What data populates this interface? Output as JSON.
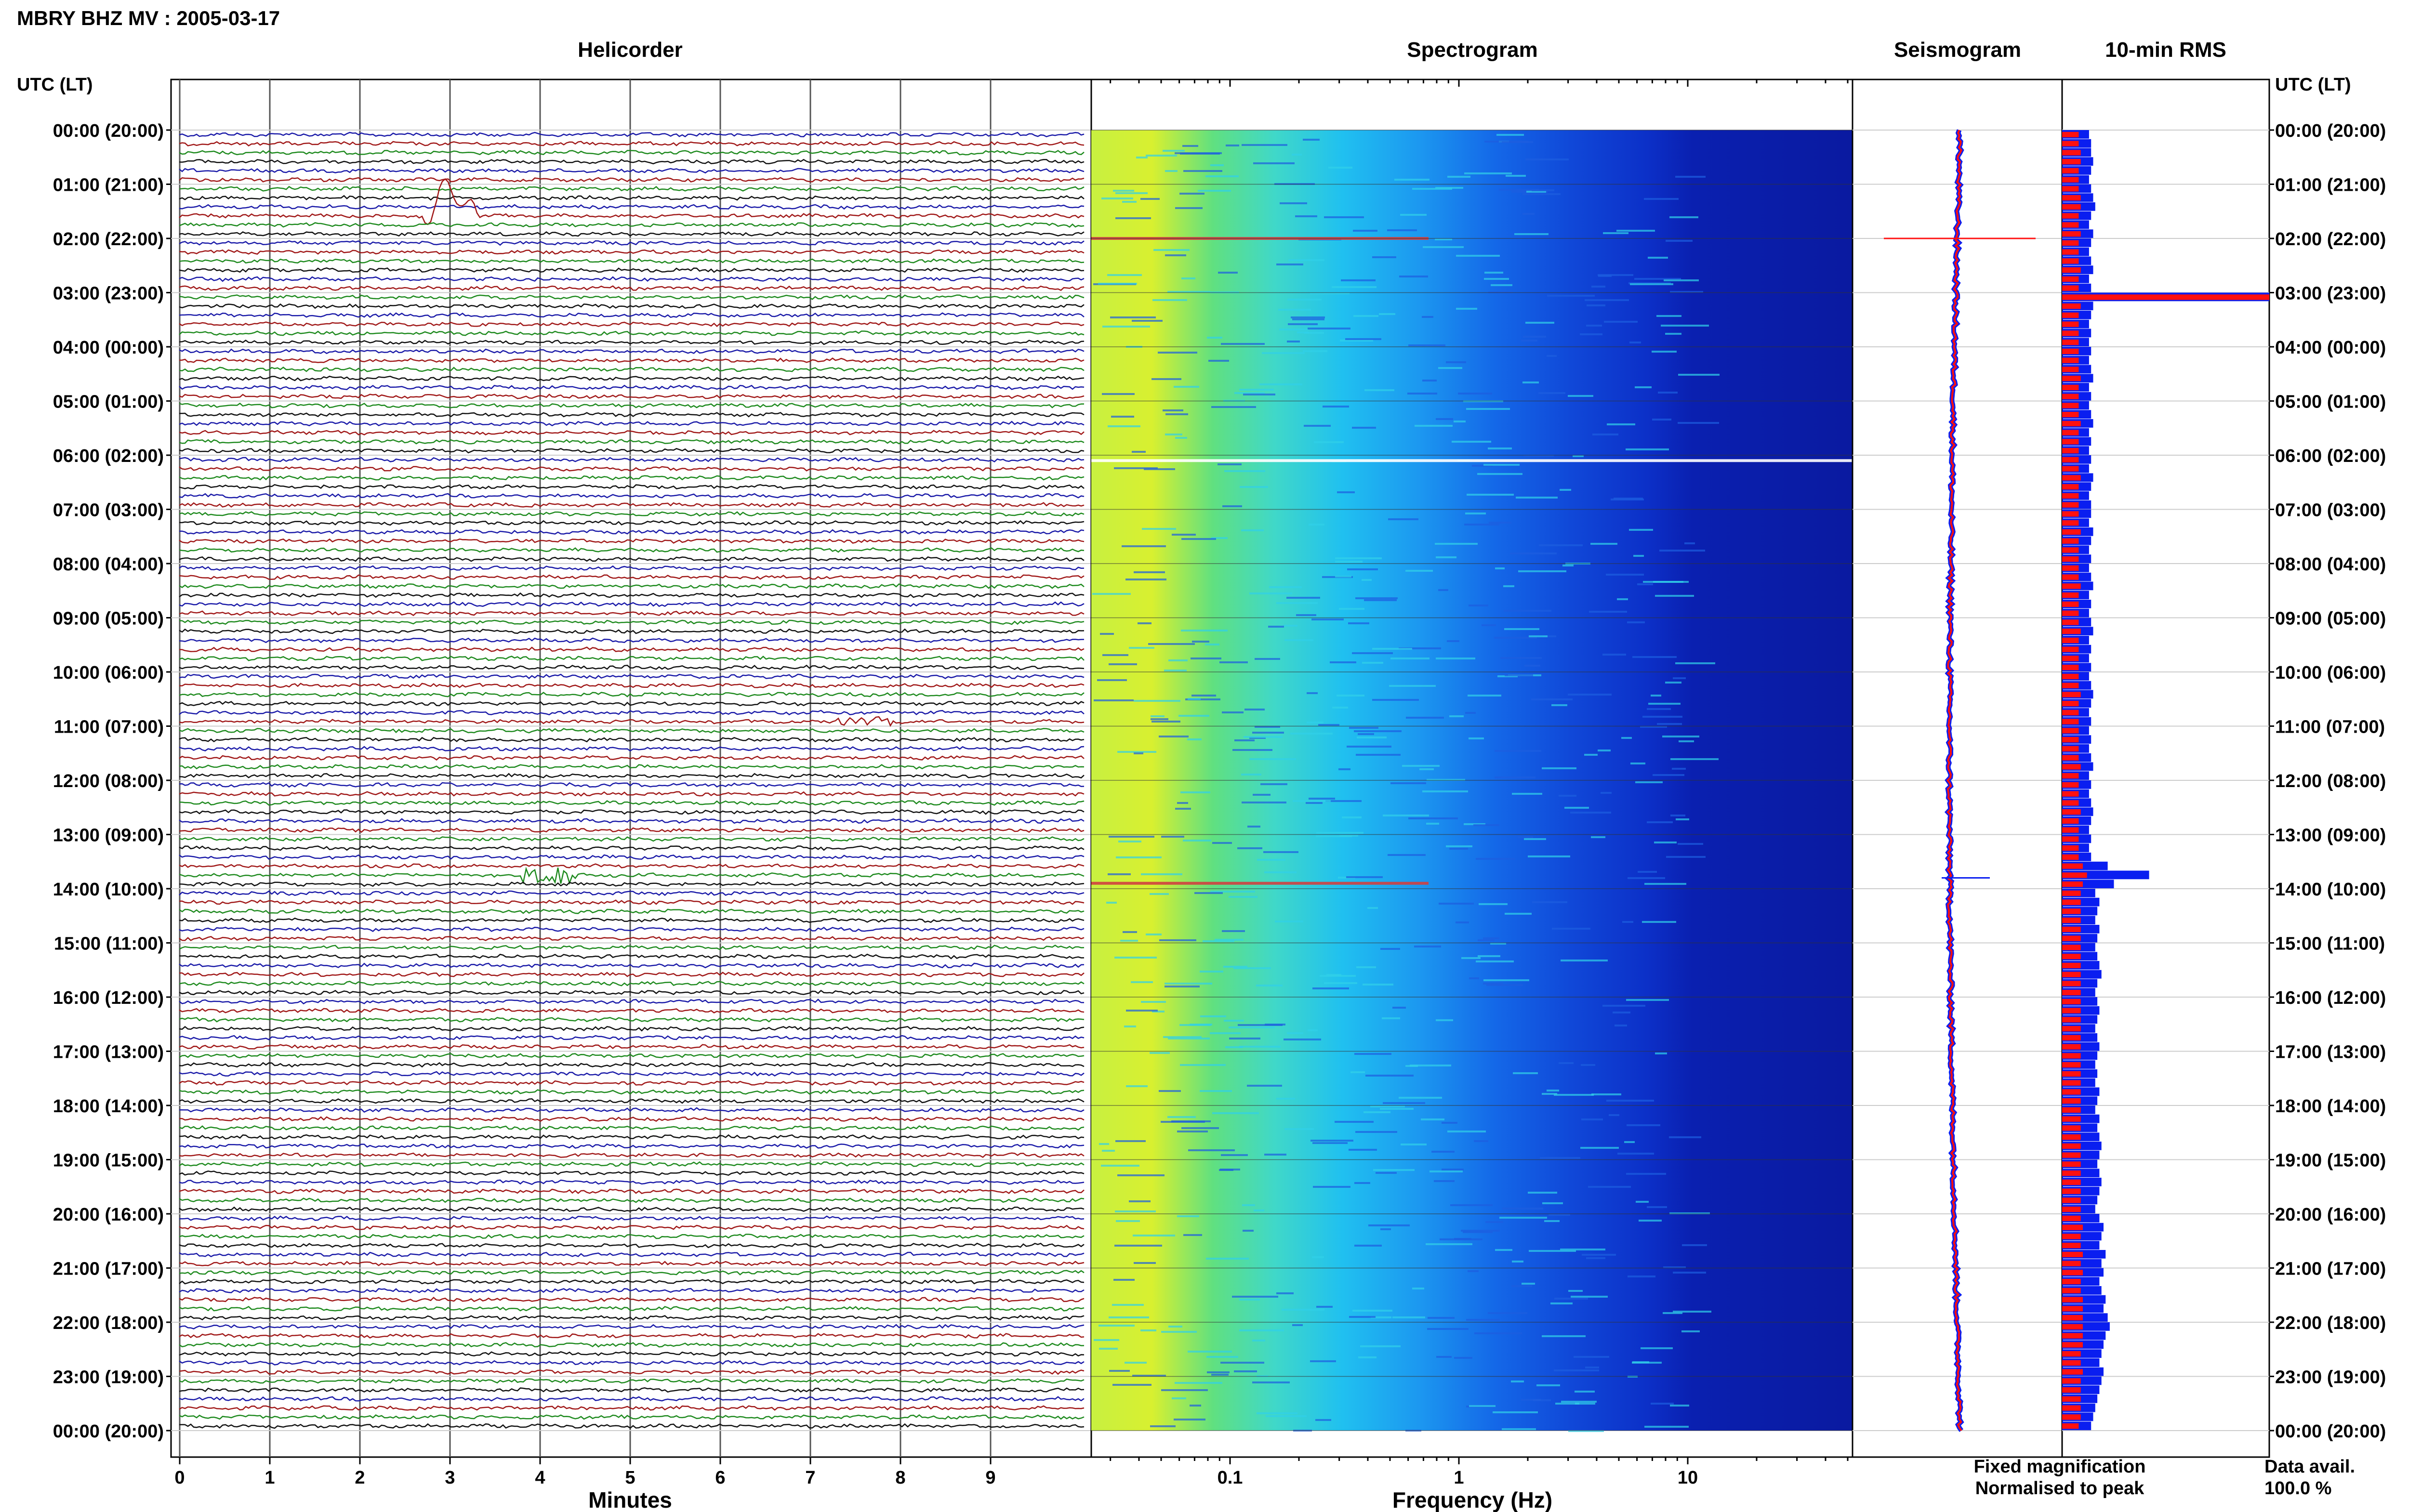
{
  "header": {
    "station_title": "MBRY BHZ MV : 2005-03-17"
  },
  "panels": {
    "helicorder": "Helicorder",
    "spectrogram": "Spectrogram",
    "seismogram": "Seismogram",
    "rms": "10-min RMS"
  },
  "time_axis": {
    "left_label": "UTC (LT)",
    "right_label": "UTC (LT)",
    "ticks": [
      "00:00 (20:00)",
      "01:00 (21:00)",
      "02:00 (22:00)",
      "03:00 (23:00)",
      "04:00 (00:00)",
      "05:00 (01:00)",
      "06:00 (02:00)",
      "07:00 (03:00)",
      "08:00 (04:00)",
      "09:00 (05:00)",
      "10:00 (06:00)",
      "11:00 (07:00)",
      "12:00 (08:00)",
      "13:00 (09:00)",
      "14:00 (10:00)",
      "15:00 (11:00)",
      "16:00 (12:00)",
      "17:00 (13:00)",
      "18:00 (14:00)",
      "19:00 (15:00)",
      "20:00 (16:00)",
      "21:00 (17:00)",
      "22:00 (18:00)",
      "23:00 (19:00)",
      "00:00 (20:00)"
    ]
  },
  "helicorder_axis": {
    "label": "Minutes",
    "ticks": [
      "0",
      "1",
      "2",
      "3",
      "4",
      "5",
      "6",
      "7",
      "8",
      "9"
    ]
  },
  "spectrogram_axis": {
    "label": "Frequency (Hz)",
    "ticks": [
      "0.1",
      "1",
      "10"
    ],
    "scale": "log"
  },
  "legend": {
    "fixed": "Fixed magnification",
    "normalised": "Normalised to peak",
    "fixed_color": "#0a1ef0",
    "normalised_color": "#ff1010"
  },
  "availability": {
    "label": "Data avail.",
    "value": "100.0 %"
  },
  "colors": {
    "trace_cycle": [
      "#1a1aa8",
      "#a01818",
      "#1e8a1e",
      "#111111"
    ],
    "rms_blue": "#0a1ef0",
    "rms_red": "#ff1010"
  },
  "chart_data": [
    {
      "type": "line",
      "title": "Helicorder",
      "xlabel": "Minutes",
      "xlim": [
        0,
        10
      ],
      "rows_per_hour": 6,
      "row_minutes": 10,
      "events": [
        {
          "hour": 1.5,
          "minute": 3.0,
          "kind": "large transient"
        },
        {
          "hour": 13.67,
          "minute": 4.1,
          "kind": "burst"
        },
        {
          "hour": 10.83,
          "minute": 7.6,
          "kind": "spike"
        }
      ]
    },
    {
      "type": "heatmap",
      "title": "Spectrogram",
      "xlabel": "Frequency (Hz)",
      "xlim": [
        0.025,
        50
      ],
      "xscale": "log",
      "colormap": "jet",
      "notable_rows": [
        {
          "hour": 2.0,
          "kind": "broadband line"
        },
        {
          "hour": 6.1,
          "kind": "data gap"
        },
        {
          "hour": 13.9,
          "kind": "broadband line"
        }
      ]
    },
    {
      "type": "bar",
      "title": "10-min RMS",
      "series": [
        {
          "name": "Fixed magnification",
          "values": [
            0.13,
            0.14,
            0.14,
            0.15,
            0.14,
            0.13,
            0.14,
            0.15,
            0.16,
            0.14,
            0.13,
            0.15,
            0.14,
            0.13,
            0.14,
            0.15,
            0.13,
            0.14,
            1.0,
            0.15,
            0.14,
            0.13,
            0.14,
            0.13,
            0.14,
            0.13,
            0.14,
            0.15,
            0.13,
            0.14,
            0.13,
            0.14,
            0.15,
            0.13,
            0.14,
            0.13,
            0.14,
            0.13,
            0.15,
            0.14,
            0.13,
            0.14,
            0.14,
            0.13,
            0.15,
            0.14,
            0.13,
            0.14,
            0.13,
            0.14,
            0.15,
            0.13,
            0.14,
            0.13,
            0.14,
            0.15,
            0.13,
            0.14,
            0.13,
            0.14,
            0.13,
            0.14,
            0.15,
            0.14,
            0.13,
            0.14,
            0.13,
            0.14,
            0.13,
            0.14,
            0.15,
            0.13,
            0.14,
            0.13,
            0.14,
            0.15,
            0.14,
            0.13,
            0.14,
            0.13,
            0.14,
            0.22,
            0.42,
            0.25,
            0.16,
            0.18,
            0.17,
            0.16,
            0.18,
            0.17,
            0.16,
            0.17,
            0.18,
            0.19,
            0.17,
            0.16,
            0.17,
            0.18,
            0.17,
            0.16,
            0.17,
            0.18,
            0.17,
            0.16,
            0.17,
            0.16,
            0.18,
            0.17,
            0.16,
            0.18,
            0.17,
            0.18,
            0.19,
            0.18,
            0.17,
            0.18,
            0.19,
            0.18,
            0.17,
            0.16,
            0.18,
            0.2,
            0.19,
            0.18,
            0.21,
            0.19,
            0.2,
            0.18,
            0.19,
            0.21,
            0.2,
            0.22,
            0.23,
            0.21,
            0.2,
            0.19,
            0.18,
            0.2,
            0.19,
            0.18,
            0.17,
            0.16,
            0.15,
            0.14
          ]
        },
        {
          "name": "Normalised to peak",
          "values": [
            0.08,
            0.08,
            0.09,
            0.09,
            0.08,
            0.08,
            0.08,
            0.09,
            0.09,
            0.08,
            0.08,
            0.09,
            0.08,
            0.08,
            0.08,
            0.09,
            0.08,
            0.08,
            1.0,
            0.09,
            0.08,
            0.08,
            0.08,
            0.08,
            0.08,
            0.08,
            0.08,
            0.09,
            0.08,
            0.08,
            0.08,
            0.08,
            0.09,
            0.08,
            0.08,
            0.08,
            0.08,
            0.08,
            0.09,
            0.08,
            0.08,
            0.08,
            0.08,
            0.08,
            0.09,
            0.08,
            0.08,
            0.08,
            0.08,
            0.08,
            0.09,
            0.08,
            0.08,
            0.08,
            0.08,
            0.09,
            0.08,
            0.08,
            0.08,
            0.08,
            0.08,
            0.08,
            0.09,
            0.08,
            0.08,
            0.08,
            0.08,
            0.08,
            0.08,
            0.08,
            0.09,
            0.08,
            0.08,
            0.08,
            0.08,
            0.09,
            0.08,
            0.08,
            0.08,
            0.08,
            0.08,
            0.1,
            0.12,
            0.1,
            0.09,
            0.09,
            0.09,
            0.09,
            0.09,
            0.09,
            0.09,
            0.09,
            0.09,
            0.09,
            0.09,
            0.09,
            0.09,
            0.09,
            0.09,
            0.09,
            0.09,
            0.09,
            0.09,
            0.09,
            0.09,
            0.09,
            0.09,
            0.09,
            0.09,
            0.09,
            0.09,
            0.09,
            0.09,
            0.09,
            0.09,
            0.09,
            0.09,
            0.09,
            0.09,
            0.09,
            0.09,
            0.1,
            0.09,
            0.09,
            0.1,
            0.09,
            0.1,
            0.09,
            0.09,
            0.1,
            0.1,
            0.1,
            0.1,
            0.1,
            0.1,
            0.09,
            0.09,
            0.1,
            0.09,
            0.09,
            0.09,
            0.09,
            0.09,
            0.08
          ]
        }
      ]
    }
  ]
}
